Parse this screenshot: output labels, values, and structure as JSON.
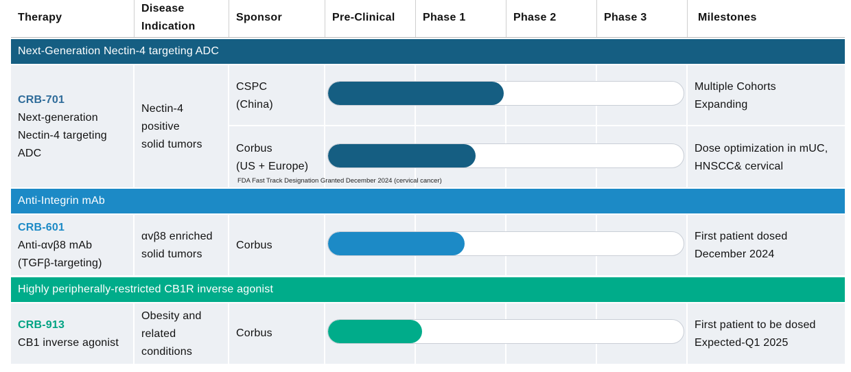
{
  "header": {
    "therapy": "Therapy",
    "indication_line1": "Disease",
    "indication_line2": "Indication",
    "sponsor": "Sponsor",
    "preclinical": "Pre-Clinical",
    "phase1": "Phase 1",
    "phase2": "Phase 2",
    "phase3": "Phase 3",
    "milestones": "Milestones"
  },
  "colors": {
    "nectin": "#155e82",
    "integrin": "#1c8ac6",
    "cb1": "#00ac8a",
    "cell_bg": "#edf0f4"
  },
  "sections": {
    "nectin": {
      "title": "Next-Generation Nectin-4 targeting ADC",
      "code": "CRB-701",
      "desc": [
        "Next-generation",
        "Nectin-4 targeting",
        "ADC"
      ],
      "indication": [
        "Nectin-4",
        "positive",
        "solid tumors"
      ],
      "rows": [
        {
          "sponsor": [
            "CSPC",
            "(China)"
          ],
          "progress": 0.495,
          "milestone": [
            "Multiple Cohorts",
            "Expanding"
          ]
        },
        {
          "sponsor": [
            "Corbus",
            "(US + Europe)"
          ],
          "progress": 0.415,
          "milestone": [
            "Dose optimization in mUC,",
            "HNSCC& cervical"
          ]
        }
      ],
      "note": "FDA Fast Track Designation Granted December 2024  (cervical cancer)"
    },
    "integrin": {
      "title": "Anti-Integrin mAb",
      "code": "CRB-601",
      "desc": [
        "Anti-αvβ8 mAb",
        "(TGFβ-targeting)"
      ],
      "indication": [
        "αvβ8 enriched",
        "solid tumors"
      ],
      "sponsor": "Corbus",
      "progress": 0.385,
      "milestone": [
        "First patient dosed",
        "December 2024"
      ]
    },
    "cb1": {
      "title": "Highly peripherally-restricted CB1R inverse agonist",
      "code": "CRB-913",
      "desc": [
        "CB1 inverse agonist"
      ],
      "indication": [
        "Obesity and",
        "related",
        "conditions"
      ],
      "sponsor": "Corbus",
      "progress": 0.265,
      "milestone": [
        "First patient to be dosed",
        "Expected-Q1 2025"
      ]
    }
  }
}
